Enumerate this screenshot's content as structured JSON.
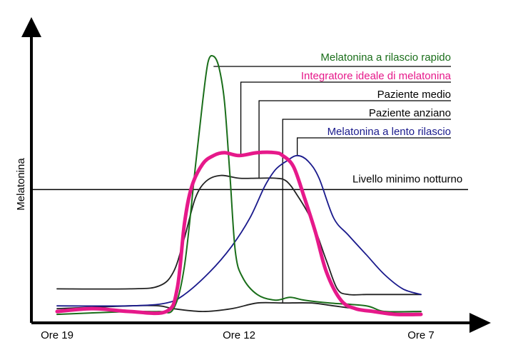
{
  "chart_data": {
    "type": "line",
    "title": "",
    "xlabel": "",
    "ylabel": "Melatonina",
    "x_ticks": [
      {
        "label": "Ore 19",
        "x": 0
      },
      {
        "label": "Ore 12",
        "x": 0.5
      },
      {
        "label": "Ore 7",
        "x": 1
      }
    ],
    "x_range": [
      -0.02,
      1.13
    ],
    "y_range": [
      0,
      1
    ],
    "grid": false,
    "reference_line": {
      "label": "Livello minimo notturno",
      "y": 0.47
    },
    "colors": {
      "rapid": "#1a6e1a",
      "ideal": "#e6198a",
      "average": "#222222",
      "elderly": "#222222",
      "slow": "#1a1a8c",
      "axis": "#000000"
    },
    "series": [
      {
        "name": "Melatonina a rilascio rapido",
        "key": "rapid",
        "points": [
          [
            0,
            0.03
          ],
          [
            0.2,
            0.04
          ],
          [
            0.28,
            0.04
          ],
          [
            0.32,
            0.05
          ],
          [
            0.35,
            0.2
          ],
          [
            0.38,
            0.55
          ],
          [
            0.4,
            0.78
          ],
          [
            0.415,
            0.92
          ],
          [
            0.43,
            0.94
          ],
          [
            0.445,
            0.9
          ],
          [
            0.46,
            0.78
          ],
          [
            0.475,
            0.52
          ],
          [
            0.49,
            0.25
          ],
          [
            0.51,
            0.16
          ],
          [
            0.55,
            0.1
          ],
          [
            0.6,
            0.08
          ],
          [
            0.64,
            0.09
          ],
          [
            0.68,
            0.08
          ],
          [
            0.75,
            0.07
          ],
          [
            0.85,
            0.06
          ],
          [
            0.9,
            0.04
          ],
          [
            1,
            0.04
          ]
        ]
      },
      {
        "name": "Integratore ideale di melatonina",
        "key": "ideal",
        "points": [
          [
            0,
            0.04
          ],
          [
            0.1,
            0.05
          ],
          [
            0.2,
            0.04
          ],
          [
            0.3,
            0.04
          ],
          [
            0.33,
            0.12
          ],
          [
            0.35,
            0.35
          ],
          [
            0.37,
            0.48
          ],
          [
            0.4,
            0.56
          ],
          [
            0.43,
            0.59
          ],
          [
            0.46,
            0.6
          ],
          [
            0.5,
            0.59
          ],
          [
            0.55,
            0.6
          ],
          [
            0.6,
            0.6
          ],
          [
            0.62,
            0.59
          ],
          [
            0.65,
            0.55
          ],
          [
            0.68,
            0.44
          ],
          [
            0.71,
            0.32
          ],
          [
            0.74,
            0.18
          ],
          [
            0.78,
            0.08
          ],
          [
            0.82,
            0.05
          ],
          [
            0.87,
            0.04
          ],
          [
            0.93,
            0.03
          ],
          [
            1,
            0.03
          ]
        ]
      },
      {
        "name": "Paziente medio",
        "key": "average",
        "points": [
          [
            0,
            0.12
          ],
          [
            0.2,
            0.12
          ],
          [
            0.28,
            0.13
          ],
          [
            0.32,
            0.18
          ],
          [
            0.35,
            0.3
          ],
          [
            0.38,
            0.44
          ],
          [
            0.41,
            0.5
          ],
          [
            0.45,
            0.52
          ],
          [
            0.5,
            0.51
          ],
          [
            0.55,
            0.51
          ],
          [
            0.6,
            0.51
          ],
          [
            0.63,
            0.5
          ],
          [
            0.66,
            0.45
          ],
          [
            0.7,
            0.36
          ],
          [
            0.74,
            0.22
          ],
          [
            0.77,
            0.12
          ],
          [
            0.8,
            0.1
          ],
          [
            0.85,
            0.1
          ],
          [
            0.92,
            0.1
          ],
          [
            1,
            0.1
          ]
        ]
      },
      {
        "name": "Paziente anziano",
        "key": "elderly",
        "points": [
          [
            0,
            0.05
          ],
          [
            0.2,
            0.06
          ],
          [
            0.28,
            0.06
          ],
          [
            0.32,
            0.05
          ],
          [
            0.4,
            0.04
          ],
          [
            0.48,
            0.05
          ],
          [
            0.55,
            0.07
          ],
          [
            0.62,
            0.07
          ],
          [
            0.7,
            0.07
          ],
          [
            0.76,
            0.06
          ],
          [
            0.82,
            0.05
          ],
          [
            0.9,
            0.04
          ],
          [
            1,
            0.04
          ]
        ]
      },
      {
        "name": "Melatonina a lento rilascio",
        "key": "slow",
        "points": [
          [
            0,
            0.06
          ],
          [
            0.2,
            0.06
          ],
          [
            0.3,
            0.07
          ],
          [
            0.35,
            0.1
          ],
          [
            0.42,
            0.18
          ],
          [
            0.48,
            0.27
          ],
          [
            0.53,
            0.37
          ],
          [
            0.57,
            0.48
          ],
          [
            0.6,
            0.54
          ],
          [
            0.63,
            0.57
          ],
          [
            0.66,
            0.59
          ],
          [
            0.69,
            0.57
          ],
          [
            0.72,
            0.51
          ],
          [
            0.76,
            0.37
          ],
          [
            0.8,
            0.31
          ],
          [
            0.85,
            0.24
          ],
          [
            0.9,
            0.17
          ],
          [
            0.95,
            0.12
          ],
          [
            1,
            0.1
          ]
        ]
      }
    ]
  }
}
